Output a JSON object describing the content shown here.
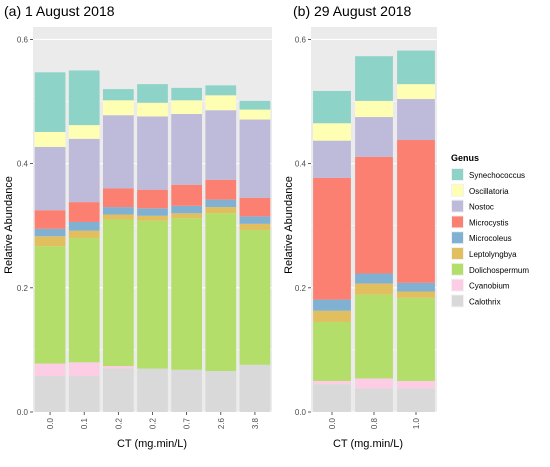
{
  "legend": {
    "title": "Genus",
    "placement": "right",
    "items": [
      {
        "name": "Synechococcus",
        "color": "#8dd3c7"
      },
      {
        "name": "Oscillatoria",
        "color": "#ffffb3"
      },
      {
        "name": "Nostoc",
        "color": "#bebada"
      },
      {
        "name": "Microcystis",
        "color": "#fb8072"
      },
      {
        "name": "Microcoleus",
        "color": "#80b1d3"
      },
      {
        "name": "Leptolyngbya",
        "color": "#e1bf5e"
      },
      {
        "name": "Dolichospermum",
        "color": "#b3de69"
      },
      {
        "name": "Cyanobium",
        "color": "#fccde5"
      },
      {
        "name": "Calothrix",
        "color": "#d9d9d9"
      }
    ]
  },
  "chart_data": [
    {
      "type": "bar",
      "stacked": true,
      "title": "(a) 1 August 2018",
      "xlabel": "CT (mg.min/L)",
      "ylabel": "Relative Abundance",
      "ylim": [
        0,
        0.62
      ],
      "yticks": [
        "0.0",
        "0.2",
        "0.4",
        "0.6"
      ],
      "grid": true,
      "background": "#ebebeb",
      "categories": [
        "0.0",
        "0.1",
        "0.2",
        "0.2",
        "0.7",
        "2.6",
        "3.8"
      ],
      "series": [
        {
          "name": "Calothrix",
          "values": [
            0.058,
            0.058,
            0.07,
            0.07,
            0.068,
            0.066,
            0.076
          ]
        },
        {
          "name": "Cyanobium",
          "values": [
            0.02,
            0.022,
            0.004,
            0.0,
            0.0,
            0.0,
            0.0
          ]
        },
        {
          "name": "Dolichospermum",
          "values": [
            0.189,
            0.2,
            0.236,
            0.238,
            0.244,
            0.254,
            0.217
          ]
        },
        {
          "name": "Leptolyngbya",
          "values": [
            0.016,
            0.012,
            0.008,
            0.008,
            0.008,
            0.01,
            0.01
          ]
        },
        {
          "name": "Microcoleus",
          "values": [
            0.012,
            0.014,
            0.012,
            0.012,
            0.012,
            0.012,
            0.012
          ]
        },
        {
          "name": "Microcystis",
          "values": [
            0.03,
            0.032,
            0.03,
            0.03,
            0.034,
            0.032,
            0.03
          ]
        },
        {
          "name": "Nostoc",
          "values": [
            0.102,
            0.102,
            0.118,
            0.118,
            0.114,
            0.112,
            0.126
          ]
        },
        {
          "name": "Oscillatoria",
          "values": [
            0.024,
            0.022,
            0.024,
            0.022,
            0.022,
            0.024,
            0.016
          ]
        },
        {
          "name": "Synechococcus",
          "values": [
            0.096,
            0.088,
            0.018,
            0.03,
            0.02,
            0.016,
            0.014
          ]
        }
      ]
    },
    {
      "type": "bar",
      "stacked": true,
      "title": "(b) 29 August 2018",
      "xlabel": "CT (mg.min/L)",
      "ylabel": "Relative Abundance",
      "ylim": [
        0,
        0.62
      ],
      "yticks": [
        "0.0",
        "0.2",
        "0.4",
        "0.6"
      ],
      "grid": true,
      "background": "#ebebeb",
      "categories": [
        "0.0",
        "0.8",
        "1.0"
      ],
      "series": [
        {
          "name": "Calothrix",
          "values": [
            0.045,
            0.038,
            0.038
          ]
        },
        {
          "name": "Cyanobium",
          "values": [
            0.005,
            0.016,
            0.012
          ]
        },
        {
          "name": "Dolichospermum",
          "values": [
            0.095,
            0.135,
            0.134
          ]
        },
        {
          "name": "Leptolyngbya",
          "values": [
            0.018,
            0.018,
            0.01
          ]
        },
        {
          "name": "Microcoleus",
          "values": [
            0.018,
            0.016,
            0.014
          ]
        },
        {
          "name": "Microcystis",
          "values": [
            0.196,
            0.188,
            0.23
          ]
        },
        {
          "name": "Nostoc",
          "values": [
            0.06,
            0.064,
            0.066
          ]
        },
        {
          "name": "Oscillatoria",
          "values": [
            0.028,
            0.026,
            0.024
          ]
        },
        {
          "name": "Synechococcus",
          "values": [
            0.052,
            0.072,
            0.054
          ]
        }
      ]
    }
  ]
}
